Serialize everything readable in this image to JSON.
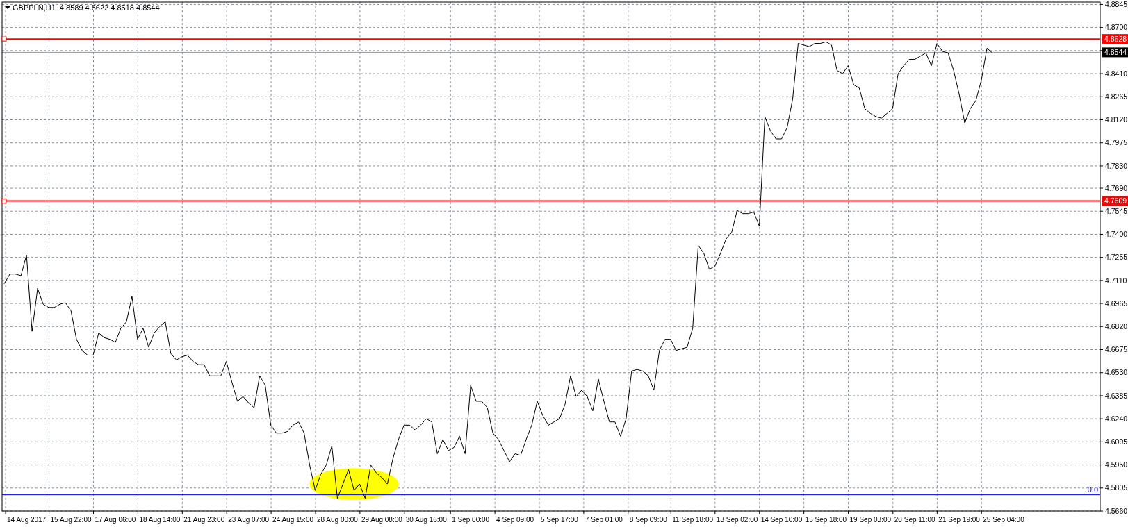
{
  "chart_data": {
    "type": "line",
    "title": "GBPPLN,H1  4.8589 4.8622 4.8518 4.8544",
    "categories": [
      null,
      null,
      null,
      null,
      "14 Aug 2017",
      null,
      null,
      null,
      null,
      null,
      null,
      null,
      "15 Aug 22:00",
      null,
      null,
      null,
      null,
      null,
      null,
      null,
      "17 Aug 06:00",
      null,
      null,
      null,
      null,
      null,
      null,
      null,
      "18 Aug 14:00",
      null,
      null,
      null,
      null,
      null,
      null,
      null,
      "21 Aug 23:00",
      null,
      null,
      null,
      null,
      null,
      null,
      null,
      "23 Aug 07:00",
      null,
      null,
      null,
      null,
      null,
      null,
      null,
      "24 Aug 15:00",
      null,
      null,
      null,
      null,
      null,
      null,
      null,
      "28 Aug 00:00",
      null,
      null,
      null,
      null,
      null,
      null,
      null,
      "29 Aug 08:00",
      null,
      null,
      null,
      null,
      null,
      null,
      null,
      "30 Aug 16:00",
      null,
      null,
      null,
      null,
      null,
      null,
      null,
      "1 Sep 00:00",
      null,
      null,
      null,
      null,
      null,
      null,
      null,
      "4 Sep 09:00",
      null,
      null,
      null,
      null,
      null,
      null,
      null,
      "5 Sep 17:00",
      null,
      null,
      null,
      null,
      null,
      null,
      null,
      "7 Sep 01:00",
      null,
      null,
      null,
      null,
      null,
      null,
      null,
      "8 Sep 09:00",
      null,
      null,
      null,
      null,
      null,
      null,
      null,
      "11 Sep 18:00",
      null,
      null,
      null,
      null,
      null,
      null,
      null,
      "13 Sep 02:00",
      null,
      null,
      null,
      null,
      null,
      null,
      null,
      "14 Sep 10:00",
      null,
      null,
      null,
      null,
      null,
      null,
      null,
      "15 Sep 18:00",
      null,
      null,
      null,
      null,
      null,
      null,
      null,
      "19 Sep 03:00",
      null,
      null,
      null,
      null,
      null,
      null,
      null,
      "20 Sep 11:00",
      null,
      null,
      null,
      null,
      null,
      null,
      null,
      "21 Sep 19:00",
      null,
      null,
      null,
      null,
      null,
      null,
      null,
      "25 Sep 04:00",
      null,
      null,
      null,
      null,
      null,
      null,
      null,
      null,
      null,
      null,
      null,
      null,
      null,
      null,
      null,
      null,
      null
    ],
    "series": [
      {
        "color": "#000000",
        "values": [
          4.709,
          4.715,
          4.715,
          4.714,
          4.727,
          4.679,
          4.706,
          4.696,
          4.694,
          4.694,
          4.696,
          4.697,
          4.692,
          4.674,
          4.667,
          4.664,
          4.664,
          4.678,
          4.675,
          4.674,
          4.672,
          4.681,
          4.685,
          4.701,
          4.674,
          4.681,
          4.669,
          4.678,
          4.682,
          4.685,
          4.665,
          4.661,
          4.663,
          4.664,
          4.66,
          4.658,
          4.658,
          4.651,
          4.651,
          4.651,
          4.66,
          4.647,
          4.635,
          4.638,
          4.634,
          4.631,
          4.651,
          4.645,
          4.62,
          4.615,
          4.615,
          4.616,
          4.62,
          4.622,
          4.615,
          4.595,
          4.579,
          4.589,
          4.595,
          4.607,
          4.574,
          4.583,
          4.592,
          4.579,
          4.583,
          4.574,
          4.595,
          4.59,
          4.587,
          4.583,
          4.599,
          4.611,
          4.62,
          4.62,
          4.617,
          4.62,
          4.624,
          4.622,
          4.602,
          4.611,
          4.604,
          4.606,
          4.613,
          4.602,
          4.645,
          4.635,
          4.635,
          4.631,
          4.615,
          4.611,
          4.604,
          4.597,
          4.602,
          4.601,
          4.611,
          4.62,
          4.635,
          4.626,
          4.62,
          4.622,
          4.624,
          4.633,
          4.651,
          4.638,
          4.642,
          4.638,
          4.629,
          4.649,
          4.635,
          4.622,
          4.622,
          4.613,
          4.624,
          4.654,
          4.655,
          4.654,
          4.651,
          4.642,
          4.667,
          4.674,
          4.674,
          4.667,
          4.668,
          4.669,
          4.681,
          4.733,
          4.728,
          4.718,
          4.72,
          4.728,
          4.737,
          4.741,
          4.755,
          4.753,
          4.753,
          4.754,
          4.745,
          4.814,
          4.805,
          4.8,
          4.8,
          4.807,
          4.825,
          4.86,
          4.859,
          4.858,
          4.86,
          4.86,
          4.861,
          4.859,
          4.843,
          4.841,
          4.846,
          4.834,
          4.832,
          4.819,
          4.816,
          4.814,
          4.813,
          4.816,
          4.819,
          4.841,
          4.846,
          4.85,
          4.85,
          4.852,
          4.854,
          4.846,
          4.86,
          4.855,
          4.854,
          4.843,
          4.828,
          4.81,
          4.819,
          4.824,
          4.837,
          4.857,
          4.854,
          null,
          null,
          null,
          null,
          null,
          null,
          null,
          null,
          null,
          null,
          null,
          null,
          null,
          null,
          null,
          null,
          null,
          null,
          null
        ]
      }
    ],
    "ylim": [
      4.566,
      4.886
    ],
    "yticks": [
      {
        "value": 4.566,
        "label": "4.5660"
      },
      {
        "value": 4.5805,
        "label": "4.5805"
      },
      {
        "value": 4.595,
        "label": "4.5950"
      },
      {
        "value": 4.6095,
        "label": "4.6095"
      },
      {
        "value": 4.624,
        "label": "4.6240"
      },
      {
        "value": 4.6385,
        "label": "4.6385"
      },
      {
        "value": 4.653,
        "label": "4.6530"
      },
      {
        "value": 4.6675,
        "label": "4.6675"
      },
      {
        "value": 4.682,
        "label": "4.6820"
      },
      {
        "value": 4.6965,
        "label": "4.6965"
      },
      {
        "value": 4.711,
        "label": "4.7110"
      },
      {
        "value": 4.7255,
        "label": "4.7255"
      },
      {
        "value": 4.74,
        "label": "4.7400"
      },
      {
        "value": 4.7545,
        "label": "4.7545"
      },
      {
        "value": 4.769,
        "label": "4.7690"
      },
      {
        "value": 4.783,
        "label": "4.7830"
      },
      {
        "value": 4.7975,
        "label": "4.7975"
      },
      {
        "value": 4.812,
        "label": "4.8120"
      },
      {
        "value": 4.8265,
        "label": "4.8265"
      },
      {
        "value": 4.841,
        "label": "4.8410"
      },
      {
        "value": 4.8555,
        "label": null
      },
      {
        "value": 4.87,
        "label": "4.8700"
      },
      {
        "value": 4.8845,
        "label": "4.8845"
      }
    ],
    "grid": true,
    "ref_lines": [
      {
        "axis": "y",
        "value": 4.8628,
        "label": "4.8628",
        "color": "#ff0000"
      },
      {
        "axis": "y",
        "value": 4.8544,
        "label": "4.8544",
        "color": "#8a96a3"
      },
      {
        "axis": "y",
        "value": 4.7609,
        "label": "4.7609",
        "color": "#ff0000"
      },
      {
        "axis": "y",
        "value": 4.5762,
        "color": "#0000ff"
      }
    ],
    "annotations": [
      "0.0"
    ]
  }
}
